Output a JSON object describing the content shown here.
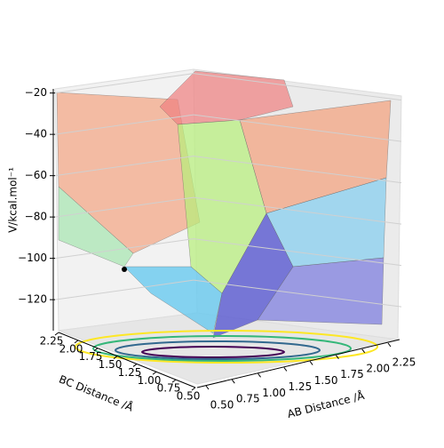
{
  "chart_data": {
    "type": "surface3d",
    "xlabel": "AB Distance /Å",
    "ylabel": "BC Distance /Å",
    "zlabel": "V/kcal.mol⁻¹",
    "xlim": [
      0.5,
      2.25
    ],
    "ylim": [
      0.5,
      2.25
    ],
    "zlim": [
      -135,
      -18
    ],
    "xticks": [
      {
        "value": 0.5,
        "label": "0.50"
      },
      {
        "value": 0.75,
        "label": "0.75"
      },
      {
        "value": 1.0,
        "label": "1.00"
      },
      {
        "value": 1.25,
        "label": "1.25"
      },
      {
        "value": 1.5,
        "label": "1.50"
      },
      {
        "value": 1.75,
        "label": "1.75"
      },
      {
        "value": 2.0,
        "label": "2.00"
      },
      {
        "value": 2.25,
        "label": "2.25"
      }
    ],
    "yticks": [
      {
        "value": 0.5,
        "label": "0.50"
      },
      {
        "value": 0.75,
        "label": "0.75"
      },
      {
        "value": 1.0,
        "label": "1.00"
      },
      {
        "value": 1.25,
        "label": "1.25"
      },
      {
        "value": 1.5,
        "label": "1.50"
      },
      {
        "value": 1.75,
        "label": "1.75"
      },
      {
        "value": 2.0,
        "label": "2.00"
      },
      {
        "value": 2.25,
        "label": "2.25"
      }
    ],
    "zticks": [
      {
        "value": -20,
        "label": "−20"
      },
      {
        "value": -40,
        "label": "−40"
      },
      {
        "value": -60,
        "label": "−60"
      },
      {
        "value": -80,
        "label": "−80"
      },
      {
        "value": -100,
        "label": "−100"
      },
      {
        "value": -120,
        "label": "−120"
      }
    ],
    "grid": true
  }
}
